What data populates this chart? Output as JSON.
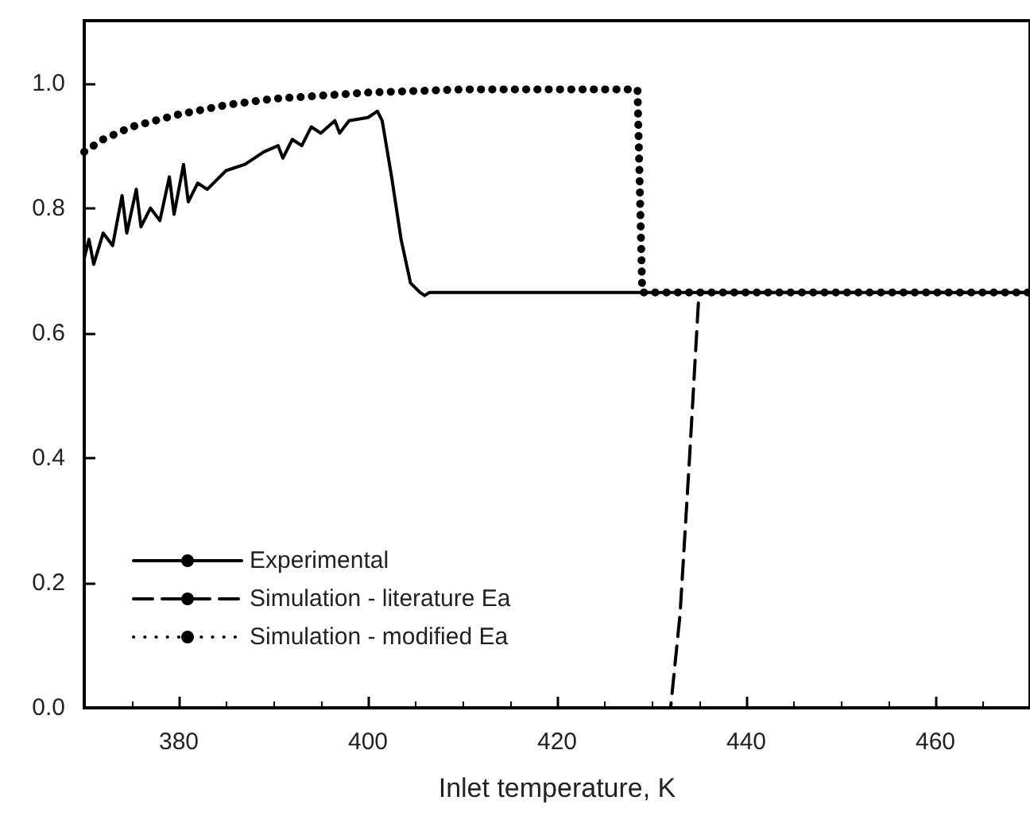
{
  "chart_data": {
    "type": "line",
    "xlabel": "Inlet temperature, K",
    "xlim": [
      370,
      470
    ],
    "xticks": [
      380,
      400,
      420,
      440,
      460
    ],
    "ylim": [
      0,
      1.1
    ],
    "yticks": [
      {
        "value": 0,
        "label": "0.0"
      },
      {
        "value": 0.2,
        "label": "0.2"
      },
      {
        "value": 0.4,
        "label": "0.4"
      },
      {
        "value": 0.6,
        "label": "0.6"
      },
      {
        "value": 0.8,
        "label": "0.8"
      },
      {
        "value": 1,
        "label": "1.0"
      }
    ],
    "grid": false,
    "legend": "bottom left",
    "marker": "none",
    "series": [
      {
        "name": "Experimental",
        "color": "#000000",
        "line_style": "solid",
        "x": [
          370,
          370.5,
          371,
          372,
          373,
          374,
          374.5,
          375.5,
          376,
          377,
          378,
          379,
          379.5,
          380.5,
          381,
          382,
          383,
          385,
          387,
          389,
          390.5,
          391,
          392,
          393,
          394,
          395,
          396.5,
          397,
          398,
          400,
          401,
          401.5,
          402.5,
          403.5,
          404.5,
          405.5,
          406,
          406.5,
          470
        ],
        "values": [
          0.72,
          0.75,
          0.71,
          0.76,
          0.74,
          0.82,
          0.76,
          0.83,
          0.77,
          0.8,
          0.78,
          0.85,
          0.79,
          0.87,
          0.81,
          0.84,
          0.83,
          0.86,
          0.87,
          0.89,
          0.9,
          0.88,
          0.91,
          0.9,
          0.93,
          0.92,
          0.94,
          0.92,
          0.94,
          0.945,
          0.955,
          0.94,
          0.85,
          0.75,
          0.68,
          0.665,
          0.66,
          0.665,
          0.665
        ]
      },
      {
        "name": "Simulation - literature Ea",
        "color": "#000000",
        "line_style": "dashed",
        "x": [
          370,
          432,
          433,
          434,
          435,
          470
        ],
        "values": [
          0,
          0,
          0.15,
          0.4,
          0.665,
          0.665
        ]
      },
      {
        "name": "Simulation - modified Ea",
        "color": "#000000",
        "line_style": "dotted",
        "x": [
          370,
          372,
          375,
          380,
          385,
          390,
          395,
          400,
          410,
          420,
          428.5,
          429,
          470
        ],
        "values": [
          0.89,
          0.91,
          0.93,
          0.95,
          0.965,
          0.975,
          0.98,
          0.985,
          0.99,
          0.99,
          0.99,
          0.665,
          0.665
        ]
      }
    ]
  }
}
